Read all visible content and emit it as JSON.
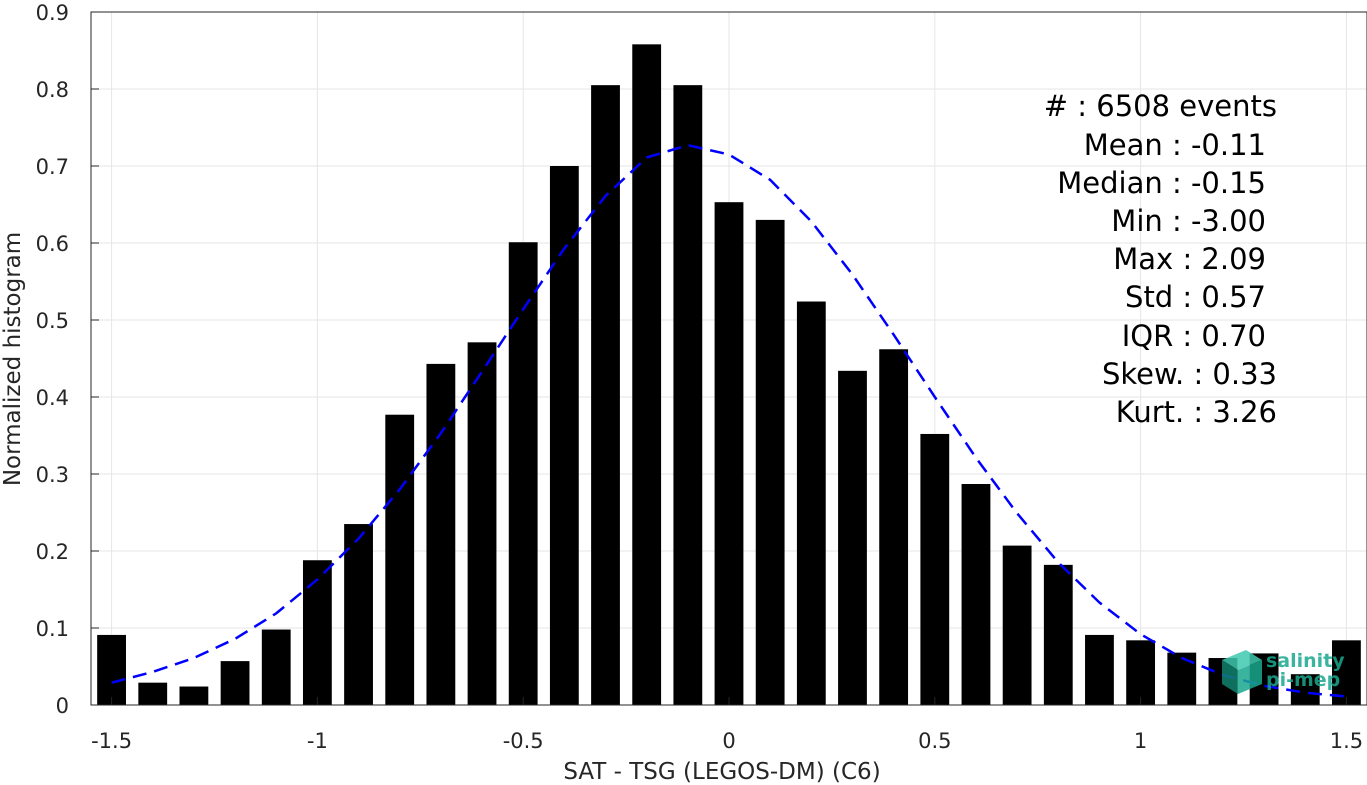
{
  "chart_data": {
    "type": "bar",
    "xlabel": "SAT - TSG (LEGOS-DM) (C6)",
    "ylabel": "Normalized histogram",
    "xlim": [
      -1.55,
      1.55
    ],
    "ylim": [
      0,
      0.9
    ],
    "xticks": [
      -1.5,
      -1,
      -0.5,
      0,
      0.5,
      1,
      1.5
    ],
    "xtick_labels": [
      "-1.5",
      "-1",
      "-0.5",
      "0",
      "0.5",
      "1",
      "1.5"
    ],
    "yticks": [
      0,
      0.1,
      0.2,
      0.3,
      0.4,
      0.5,
      0.6,
      0.7,
      0.8,
      0.9
    ],
    "ytick_labels": [
      "0",
      "0.1",
      "0.2",
      "0.3",
      "0.4",
      "0.5",
      "0.6",
      "0.7",
      "0.8",
      "0.9"
    ],
    "grid": true,
    "bar_color": "#000000",
    "bin_centers": [
      -1.5,
      -1.4,
      -1.3,
      -1.2,
      -1.1,
      -1.0,
      -0.9,
      -0.8,
      -0.7,
      -0.6,
      -0.5,
      -0.4,
      -0.3,
      -0.2,
      -0.1,
      0.0,
      0.1,
      0.2,
      0.3,
      0.4,
      0.5,
      0.6,
      0.7,
      0.8,
      0.9,
      1.0,
      1.1,
      1.2,
      1.3,
      1.4,
      1.5
    ],
    "values": [
      0.091,
      0.029,
      0.024,
      0.057,
      0.098,
      0.188,
      0.235,
      0.377,
      0.443,
      0.471,
      0.601,
      0.7,
      0.805,
      0.858,
      0.805,
      0.653,
      0.63,
      0.524,
      0.434,
      0.462,
      0.352,
      0.287,
      0.207,
      0.182,
      0.091,
      0.084,
      0.068,
      0.061,
      0.067,
      0.04,
      0.084
    ],
    "fit_curve": {
      "style": "dashed",
      "color": "#0000ff",
      "x": [
        -1.5,
        -1.4,
        -1.3,
        -1.2,
        -1.1,
        -1.0,
        -0.9,
        -0.8,
        -0.7,
        -0.6,
        -0.5,
        -0.4,
        -0.3,
        -0.2,
        -0.1,
        0.0,
        0.1,
        0.2,
        0.3,
        0.4,
        0.5,
        0.6,
        0.7,
        0.8,
        0.9,
        1.0,
        1.1,
        1.2,
        1.3,
        1.4,
        1.5
      ],
      "y": [
        0.029,
        0.043,
        0.061,
        0.086,
        0.119,
        0.163,
        0.216,
        0.28,
        0.353,
        0.433,
        0.514,
        0.593,
        0.661,
        0.711,
        0.727,
        0.715,
        0.682,
        0.628,
        0.559,
        0.481,
        0.4,
        0.321,
        0.249,
        0.185,
        0.133,
        0.092,
        0.061,
        0.039,
        0.025,
        0.016,
        0.011
      ]
    },
    "annotations": {
      "events": "#  : 6508 events",
      "mean": "Mean : -0.11",
      "median": "Median : -0.15",
      "min": "Min : -3.00",
      "max": "Max : 2.09",
      "std": "Std : 0.57",
      "iqr": "IQR : 0.70",
      "skew": "Skew. : 0.33",
      "kurt": "Kurt. : 3.26"
    }
  },
  "logo": {
    "line1": "salinity",
    "line2": "pi-mep",
    "color": "#1aa88f"
  }
}
